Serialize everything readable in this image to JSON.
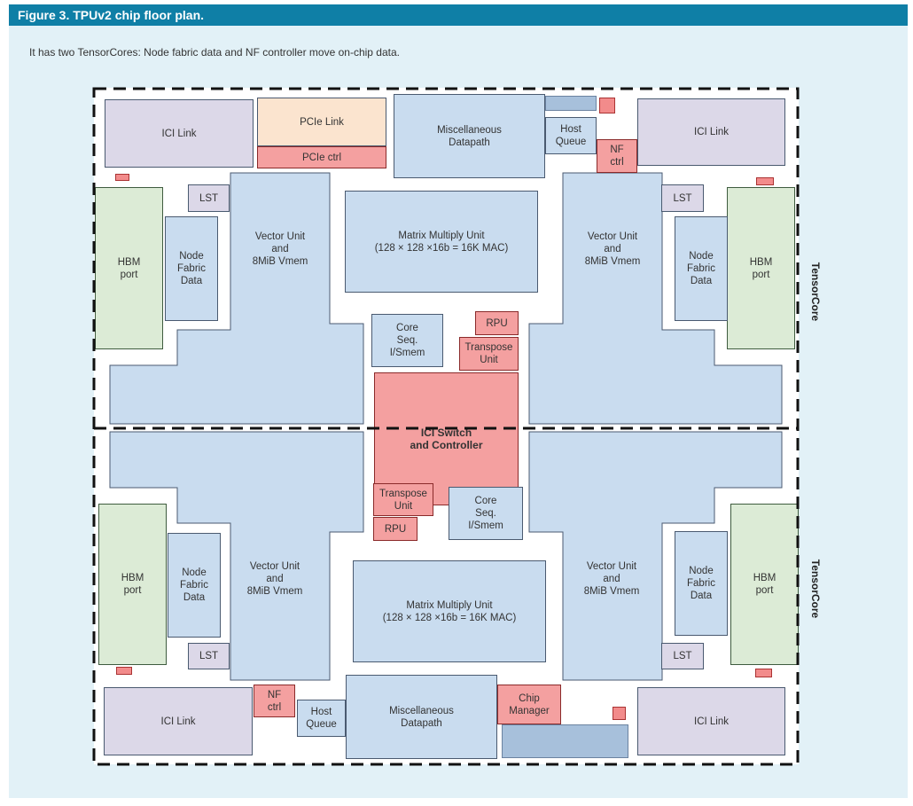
{
  "figure": {
    "title": "Figure 3. TPUv2 chip floor plan.",
    "caption": "It has two TensorCores: Node fabric data and NF controller move on-chip data."
  },
  "labels": {
    "ici_link": "ICI Link",
    "pcie_link": "PCIe Link",
    "pcie_ctrl": "PCIe ctrl",
    "misc_datapath": "Miscellaneous\nDatapath",
    "host_queue": "Host\nQueue",
    "nf_ctrl": "NF\nctrl",
    "lst": "LST",
    "hbm_port": "HBM\nport",
    "node_fabric_data": "Node\nFabric\nData",
    "vector_unit": "Vector Unit\nand\n8MiB Vmem",
    "matrix_multiply_unit": "Matrix Multiply Unit\n(128 × 128 ×16b = 16K MAC)",
    "core_seq": "Core\nSeq.\nI/Smem",
    "rpu": "RPU",
    "transpose_unit": "Transpose\nUnit",
    "ici_switch": "ICI Switch\nand Controller",
    "chip_manager": "Chip\nManager",
    "tensorcore": "TensorCore"
  },
  "colors": {
    "header": "#0f7fa6",
    "panel": "#e2f1f7",
    "blue_unit": "#c9dcef",
    "purple_unit": "#dcd8e8",
    "green_unit": "#dcebd6",
    "red_unit": "#f4a0a0",
    "peach_unit": "#fbe4cf"
  }
}
